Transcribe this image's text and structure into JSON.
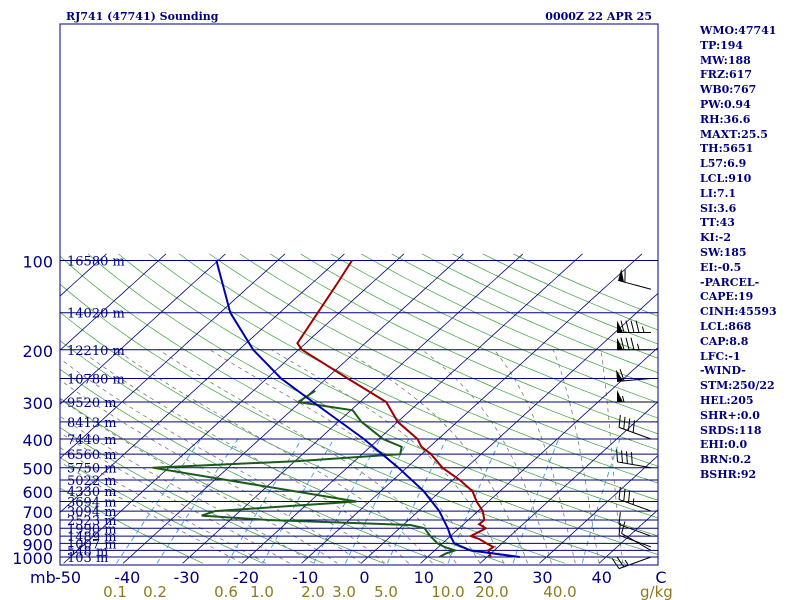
{
  "header": {
    "title": "RJ741 (47741) Sounding",
    "time": "0000Z 22 APR 25"
  },
  "stats": [
    "WMO:47741",
    "TP:194",
    "MW:188",
    "FRZ:617",
    "WB0:767",
    "PW:0.94",
    "RH:36.6",
    "MAXT:25.5",
    "TH:5651",
    "L57:6.9",
    "LCL:910",
    "LI:7.1",
    "SI:3.6",
    "TT:43",
    "KI:-2",
    "SW:185",
    "EI:-0.5",
    "-PARCEL-",
    "CAPE:19",
    "CINH:45593",
    "LCL:868",
    "CAP:8.8",
    "LFC:-1",
    "-WIND-",
    "STM:250/22",
    "HEL:205",
    "SHR+:0.0",
    "SRDS:118",
    "EHI:0.0",
    "BRN:0.2",
    "BSHR:92"
  ],
  "chart_data": {
    "type": "line",
    "title": "RJ741 (47741) Sounding",
    "subtitle": "0000Z 22 APR 25",
    "xlabel": "",
    "ylabel": "mb",
    "x_unit": "°C",
    "y_scale": "log-pressure",
    "xlim": [
      -50,
      50
    ],
    "ylim": [
      1000,
      100
    ],
    "grid": true,
    "pressure_ticks": [
      100,
      200,
      300,
      400,
      500,
      600,
      700,
      800,
      900,
      1000
    ],
    "temperature_ticks": [
      "-50",
      "-40",
      "-30",
      "-20",
      "-10",
      "0",
      "10",
      "20",
      "30",
      "40",
      "C"
    ],
    "mixing_ratio_ticks": [
      "0.1",
      "0.2",
      "0.6",
      "1.0",
      "2.0",
      "3.0",
      "5.0",
      "10.0",
      "20.0",
      "40.0"
    ],
    "mixing_ratio_unit": "g/kg",
    "height_levels": [
      {
        "p": 100,
        "h": "16580 m"
      },
      {
        "p": 150,
        "h": "14020 m"
      },
      {
        "p": 200,
        "h": "12210 m"
      },
      {
        "p": 250,
        "h": "10780 m"
      },
      {
        "p": 300,
        "h": "9520 m"
      },
      {
        "p": 350,
        "h": "8413 m"
      },
      {
        "p": 400,
        "h": "7440 m"
      },
      {
        "p": 450,
        "h": "6560 m"
      },
      {
        "p": 500,
        "h": "5750 m"
      },
      {
        "p": 550,
        "h": "5022 m"
      },
      {
        "p": 600,
        "h": "4330 m"
      },
      {
        "p": 650,
        "h": "3694 m"
      },
      {
        "p": 700,
        "h": "3094 m"
      },
      {
        "p": 750,
        "h": "2523 m"
      },
      {
        "p": 800,
        "h": "1990 m"
      },
      {
        "p": 850,
        "h": "1489 m"
      },
      {
        "p": 900,
        "h": "1007 m"
      },
      {
        "p": 950,
        "h": "548 m"
      },
      {
        "p": 1000,
        "h": "103 m"
      }
    ],
    "series": [
      {
        "name": "",
        "role": "temperature",
        "color": "#a00000",
        "points": [
          {
            "p": 1000,
            "t": 20.6
          },
          {
            "p": 980,
            "t": 20.0
          },
          {
            "p": 950,
            "t": 19.0
          },
          {
            "p": 925,
            "t": 19.2
          },
          {
            "p": 900,
            "t": 17.4
          },
          {
            "p": 870,
            "t": 15.4
          },
          {
            "p": 850,
            "t": 13.4
          },
          {
            "p": 800,
            "t": 14.5
          },
          {
            "p": 775,
            "t": 12.6
          },
          {
            "p": 750,
            "t": 12.7
          },
          {
            "p": 700,
            "t": 10.8
          },
          {
            "p": 650,
            "t": 8.0
          },
          {
            "p": 600,
            "t": 5.4
          },
          {
            "p": 550,
            "t": 1.2
          },
          {
            "p": 500,
            "t": -4.0
          },
          {
            "p": 450,
            "t": -8.4
          },
          {
            "p": 425,
            "t": -11.4
          },
          {
            "p": 400,
            "t": -13.5
          },
          {
            "p": 350,
            "t": -20.0
          },
          {
            "p": 300,
            "t": -25.6
          },
          {
            "p": 250,
            "t": -36.4
          },
          {
            "p": 200,
            "t": -49.4
          },
          {
            "p": 190,
            "t": -51.4
          },
          {
            "p": 150,
            "t": -53.6
          },
          {
            "p": 120,
            "t": -55.7
          },
          {
            "p": 100,
            "t": -57.5
          }
        ]
      },
      {
        "name": "",
        "role": "dewpoint",
        "color": "#1a5a1a",
        "points": [
          {
            "p": 1000,
            "t": 12.0
          },
          {
            "p": 975,
            "t": 12.4
          },
          {
            "p": 950,
            "t": 13.4
          },
          {
            "p": 925,
            "t": 11.0
          },
          {
            "p": 900,
            "t": 9.2
          },
          {
            "p": 850,
            "t": 6.6
          },
          {
            "p": 800,
            "t": 4.2
          },
          {
            "p": 780,
            "t": 1.2
          },
          {
            "p": 750,
            "t": -23.6
          },
          {
            "p": 725,
            "t": -35.6
          },
          {
            "p": 700,
            "t": -34.2
          },
          {
            "p": 650,
            "t": -12.2
          },
          {
            "p": 500,
            "t": -52.7
          },
          {
            "p": 475,
            "t": -29.5
          },
          {
            "p": 450,
            "t": -13.6
          },
          {
            "p": 425,
            "t": -14.7
          },
          {
            "p": 400,
            "t": -19.3
          },
          {
            "p": 350,
            "t": -26.1
          },
          {
            "p": 320,
            "t": -29.7
          },
          {
            "p": 300,
            "t": -40.4
          },
          {
            "p": 275,
            "t": -39.6
          }
        ]
      },
      {
        "name": "",
        "role": "parcel",
        "color": "#0000b0",
        "points": [
          {
            "p": 1000,
            "t": 25.5
          },
          {
            "p": 950,
            "t": 16.0
          },
          {
            "p": 900,
            "t": 12.0
          },
          {
            "p": 850,
            "t": 10.0
          },
          {
            "p": 800,
            "t": 8.1
          },
          {
            "p": 700,
            "t": 3.5
          },
          {
            "p": 600,
            "t": -2.8
          },
          {
            "p": 500,
            "t": -11.4
          },
          {
            "p": 400,
            "t": -22.5
          },
          {
            "p": 300,
            "t": -37.9
          },
          {
            "p": 250,
            "t": -47.6
          },
          {
            "p": 200,
            "t": -57.6
          },
          {
            "p": 150,
            "t": -68.3
          },
          {
            "p": 100,
            "t": -80.3
          }
        ]
      }
    ],
    "wind_barbs": [
      {
        "p": 1000,
        "dir": 250,
        "spd": 25
      },
      {
        "p": 950,
        "dir": 300,
        "spd": 10
      },
      {
        "p": 925,
        "dir": 290,
        "spd": 10
      },
      {
        "p": 850,
        "dir": 290,
        "spd": 10
      },
      {
        "p": 700,
        "dir": 290,
        "spd": 35
      },
      {
        "p": 500,
        "dir": 280,
        "spd": 40
      },
      {
        "p": 400,
        "dir": 290,
        "spd": 40
      },
      {
        "p": 300,
        "dir": 270,
        "spd": 55
      },
      {
        "p": 250,
        "dir": 265,
        "spd": 60
      },
      {
        "p": 200,
        "dir": 270,
        "spd": 85
      },
      {
        "p": 175,
        "dir": 270,
        "spd": 95
      },
      {
        "p": 125,
        "dir": 285,
        "spd": 60
      }
    ]
  }
}
